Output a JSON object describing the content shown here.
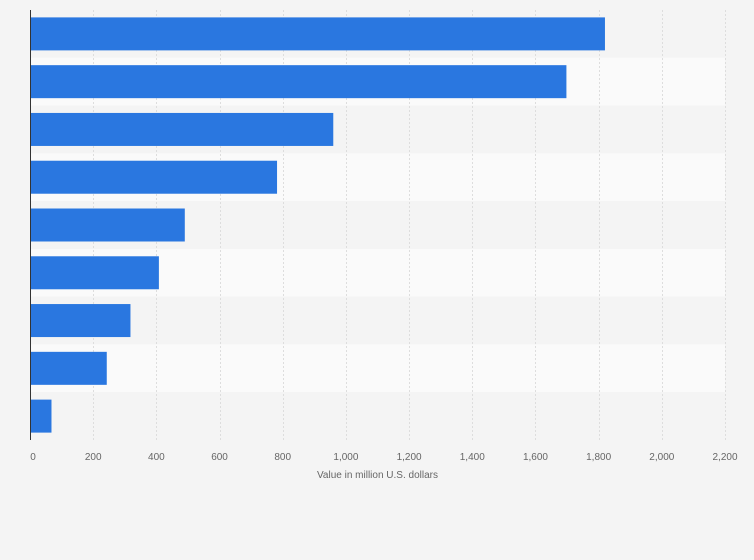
{
  "chart_data": {
    "type": "bar",
    "orientation": "horizontal",
    "categories": [
      "",
      "",
      "",
      "",
      "",
      "",
      "",
      "",
      ""
    ],
    "values": [
      1820,
      1698,
      960,
      782,
      490,
      408,
      318,
      243,
      68
    ],
    "xlabel": "Value in million U.S. dollars",
    "xlim": [
      0,
      2200
    ],
    "xticks": [
      0,
      200,
      400,
      600,
      800,
      1000,
      1200,
      1400,
      1600,
      1800,
      2000,
      2200
    ],
    "xtick_labels": [
      "0",
      "200",
      "400",
      "600",
      "800",
      "1,000",
      "1,200",
      "1,400",
      "1,600",
      "1,800",
      "2,000",
      "2,200"
    ],
    "grid": true,
    "colors": {
      "bar": "#2a77e0",
      "band_dark": "#f4f4f4",
      "band_light": "#fafafa",
      "grid": "#dddddd",
      "axis": "#333333"
    }
  }
}
